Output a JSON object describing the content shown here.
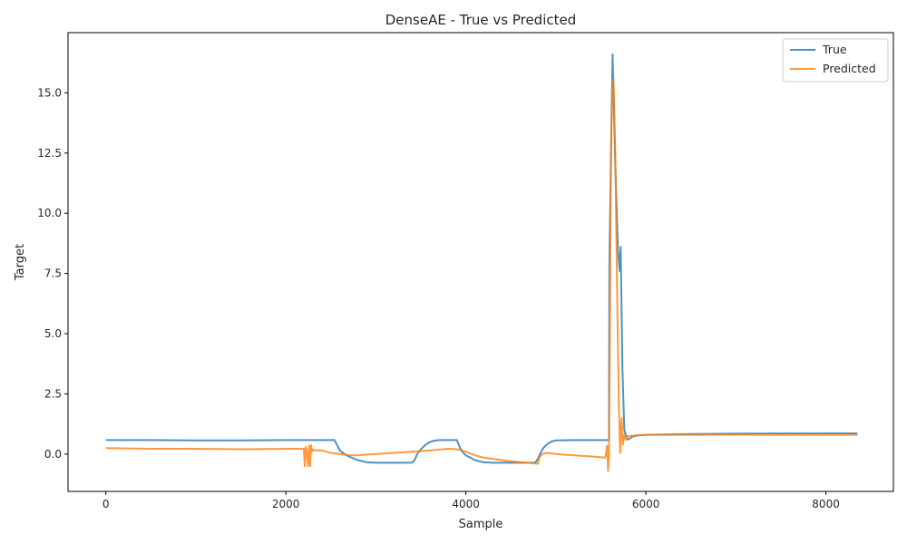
{
  "chart_data": {
    "type": "line",
    "title": "DenseAE - True vs Predicted",
    "xlabel": "Sample",
    "ylabel": "Target",
    "xlim": [
      -420,
      8750
    ],
    "ylim": [
      -1.55,
      17.5
    ],
    "xticks": [
      0,
      2000,
      4000,
      6000,
      8000
    ],
    "xtick_labels": [
      "0",
      "2000",
      "4000",
      "6000",
      "8000"
    ],
    "yticks": [
      0.0,
      2.5,
      5.0,
      7.5,
      10.0,
      12.5,
      15.0
    ],
    "ytick_labels": [
      "0.0",
      "2.5",
      "5.0",
      "7.5",
      "10.0",
      "12.5",
      "15.0"
    ],
    "grid": false,
    "legend_position": "top-right",
    "series": [
      {
        "name": "True",
        "color": "#1f77b4",
        "x": [
          0,
          500,
          1000,
          1500,
          2000,
          2540,
          2560,
          2600,
          2650,
          2700,
          2800,
          2900,
          3000,
          3200,
          3400,
          3430,
          3460,
          3500,
          3550,
          3600,
          3650,
          3700,
          3800,
          3900,
          3930,
          3960,
          4000,
          4050,
          4100,
          4150,
          4200,
          4300,
          4500,
          4700,
          4770,
          4800,
          4830,
          4860,
          4900,
          4950,
          5000,
          5200,
          5400,
          5590,
          5595,
          5630,
          5660,
          5690,
          5710,
          5720,
          5740,
          5760,
          5780,
          5800,
          5850,
          5900,
          6000,
          6500,
          7000,
          8000,
          8350
        ],
        "y": [
          0.58,
          0.58,
          0.57,
          0.57,
          0.58,
          0.58,
          0.45,
          0.15,
          0.0,
          -0.1,
          -0.25,
          -0.34,
          -0.36,
          -0.36,
          -0.36,
          -0.25,
          0.0,
          0.2,
          0.38,
          0.5,
          0.56,
          0.58,
          0.58,
          0.58,
          0.3,
          0.1,
          -0.05,
          -0.15,
          -0.25,
          -0.3,
          -0.34,
          -0.36,
          -0.36,
          -0.36,
          -0.36,
          -0.2,
          0.05,
          0.25,
          0.4,
          0.52,
          0.57,
          0.58,
          0.58,
          0.58,
          8.0,
          16.6,
          12.0,
          8.5,
          7.6,
          8.6,
          3.5,
          1.0,
          0.75,
          0.6,
          0.72,
          0.77,
          0.8,
          0.83,
          0.85,
          0.86,
          0.86
        ]
      },
      {
        "name": "Predicted",
        "color": "#ff7f0e",
        "x": [
          0,
          500,
          1000,
          1500,
          2000,
          2200,
          2210,
          2220,
          2230,
          2245,
          2260,
          2270,
          2280,
          2290,
          2300,
          2320,
          2400,
          2500,
          2600,
          2700,
          2800,
          2900,
          3000,
          3200,
          3400,
          3600,
          3800,
          3900,
          4000,
          4100,
          4200,
          4300,
          4400,
          4500,
          4600,
          4700,
          4800,
          4820,
          4850,
          4900,
          5000,
          5200,
          5400,
          5550,
          5570,
          5580,
          5590,
          5600,
          5610,
          5620,
          5640,
          5660,
          5680,
          5700,
          5715,
          5730,
          5745,
          5760,
          5775,
          5800,
          5900,
          6000,
          6500,
          7000,
          8000,
          8350
        ],
        "y": [
          0.25,
          0.22,
          0.22,
          0.2,
          0.22,
          0.22,
          -0.5,
          0.3,
          0.22,
          -0.5,
          0.35,
          -0.5,
          0.38,
          0.1,
          0.2,
          0.15,
          0.15,
          0.05,
          0.0,
          -0.05,
          -0.05,
          -0.02,
          0.0,
          0.05,
          0.1,
          0.15,
          0.22,
          0.2,
          0.1,
          -0.05,
          -0.15,
          -0.2,
          -0.25,
          -0.3,
          -0.33,
          -0.36,
          -0.4,
          -0.1,
          0.0,
          0.05,
          0.0,
          -0.05,
          -0.1,
          -0.15,
          0.35,
          -0.7,
          -0.2,
          5.0,
          11.5,
          14.5,
          15.6,
          12.5,
          7.0,
          2.0,
          0.05,
          1.5,
          0.4,
          0.8,
          0.6,
          0.75,
          0.78,
          0.8,
          0.8,
          0.8,
          0.8,
          0.8
        ]
      }
    ]
  }
}
